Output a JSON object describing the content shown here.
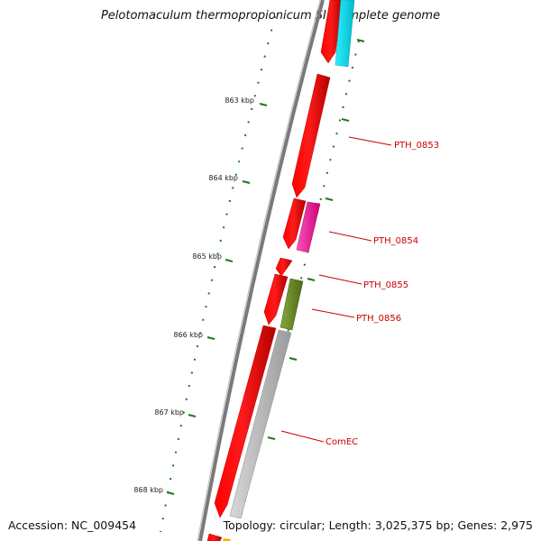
{
  "title": "Pelotomaculum thermopropionicum SI, complete genome",
  "footer": {
    "accession": "Accession: NC_009454",
    "info": "Topology: circular; Length: 3,025,375 bp; Genes: 2,975"
  },
  "scale_labels": [
    "863 kbp",
    "864 kbp",
    "865 kbp",
    "866 kbp",
    "867 kbp",
    "868 kbp"
  ],
  "gene_labels": [
    "PTH_0853",
    "PTH_0854",
    "PTH_0855",
    "PTH_0856",
    "ComEC"
  ],
  "colors": {
    "backbone": "#777777",
    "forward_gene": "#ff0000",
    "tick": "#1a7a1a",
    "label": "#cc0000",
    "cyan_feature": "#00e5ee",
    "pink_feature": "#ff33aa",
    "olive_feature": "#6b8e23",
    "gray_feature": "#c0c0c0"
  }
}
